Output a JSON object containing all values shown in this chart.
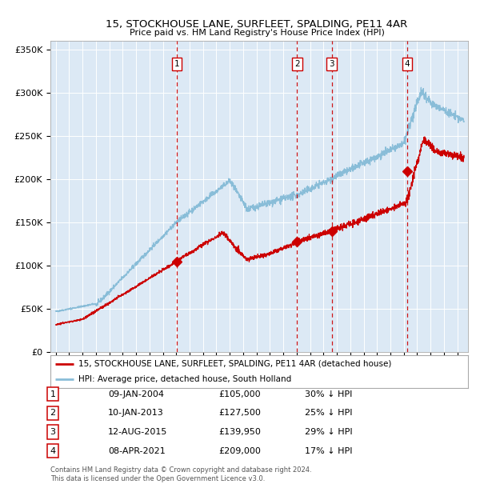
{
  "title1": "15, STOCKHOUSE LANE, SURFLEET, SPALDING, PE11 4AR",
  "title2": "Price paid vs. HM Land Registry's House Price Index (HPI)",
  "ylabel_ticks": [
    "£0",
    "£50K",
    "£100K",
    "£150K",
    "£200K",
    "£250K",
    "£300K",
    "£350K"
  ],
  "ytick_vals": [
    0,
    50000,
    100000,
    150000,
    200000,
    250000,
    300000,
    350000
  ],
  "ylim": [
    0,
    360000
  ],
  "xlim_start": 1994.6,
  "xlim_end": 2025.8,
  "bg_color": "#dce9f5",
  "grid_color": "#ffffff",
  "hpi_color": "#89bdd8",
  "price_color": "#cc0000",
  "sale_marker_color": "#cc0000",
  "vline_color": "#cc0000",
  "sale_dates_year": [
    2004.03,
    2013.03,
    2015.62,
    2021.27
  ],
  "sale_prices": [
    105000,
    127500,
    139950,
    209000
  ],
  "sale_labels": [
    "1",
    "2",
    "3",
    "4"
  ],
  "legend_line1": "15, STOCKHOUSE LANE, SURFLEET, SPALDING, PE11 4AR (detached house)",
  "legend_line2": "HPI: Average price, detached house, South Holland",
  "table_data": [
    [
      "1",
      "09-JAN-2004",
      "£105,000",
      "30% ↓ HPI"
    ],
    [
      "2",
      "10-JAN-2013",
      "£127,500",
      "25% ↓ HPI"
    ],
    [
      "3",
      "12-AUG-2015",
      "£139,950",
      "29% ↓ HPI"
    ],
    [
      "4",
      "08-APR-2021",
      "£209,000",
      "17% ↓ HPI"
    ]
  ],
  "footnote1": "Contains HM Land Registry data © Crown copyright and database right 2024.",
  "footnote2": "This data is licensed under the Open Government Licence v3.0."
}
